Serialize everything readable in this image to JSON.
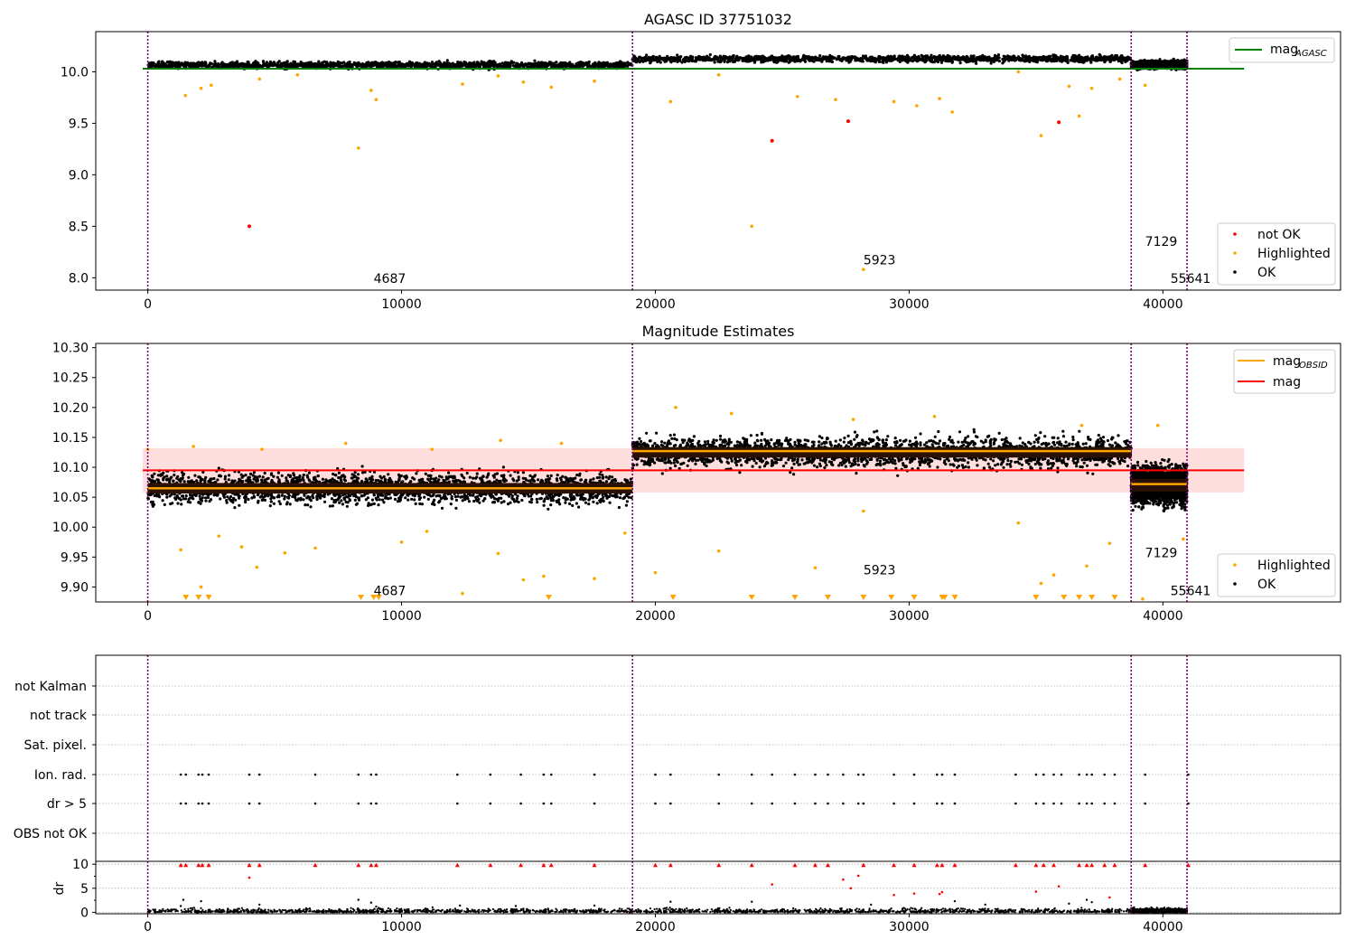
{
  "figure": {
    "title": "AGASC ID 37751032"
  },
  "colors": {
    "ok": "#000000",
    "highlighted": "#ffa500",
    "not_ok": "#ff0000",
    "mag_agasc": "#008000",
    "mag": "#ff0000",
    "mag_obsid": "#ffa500",
    "obs_line": "#800080",
    "band": "#ffdede",
    "grid": "#b0b0b0"
  },
  "chart_data": [
    {
      "id": "agasc",
      "type": "scatter",
      "title": "AGASC ID 37751032",
      "xlim": [
        -2050,
        47000
      ],
      "ylim": [
        7.88,
        10.39
      ],
      "xticks": [
        0,
        10000,
        20000,
        30000,
        40000
      ],
      "yticks": [
        8.0,
        8.5,
        9.0,
        9.5,
        10.0
      ],
      "ytick_labels": [
        "8.0",
        "8.5",
        "9.0",
        "9.5",
        "10.0"
      ],
      "obs_boundaries": [
        0,
        19100,
        38750,
        40950
      ],
      "obs_labels": [
        {
          "text": "4687",
          "x": 8900,
          "y": 7.95
        },
        {
          "text": "5923",
          "x": 28200,
          "y": 8.13
        },
        {
          "text": "7129",
          "x": 39300,
          "y": 8.31
        },
        {
          "text": "55641",
          "x": 40300,
          "y": 7.95
        }
      ],
      "mag_agasc": 10.03,
      "mag_agasc_xrange": [
        -200,
        43200
      ],
      "segments": [
        {
          "x0": 0,
          "x1": 19100,
          "center": 10.065,
          "spread": 0.03
        },
        {
          "x0": 19100,
          "x1": 38750,
          "center": 10.125,
          "spread": 0.03
        },
        {
          "x0": 38750,
          "x1": 40950,
          "center": 10.07,
          "spread": 0.035
        }
      ],
      "highlighted": [
        [
          1480,
          9.77
        ],
        [
          2100,
          9.84
        ],
        [
          2500,
          9.87
        ],
        [
          8300,
          9.26
        ],
        [
          8800,
          9.82
        ],
        [
          9000,
          9.73
        ],
        [
          12400,
          9.88
        ],
        [
          14800,
          9.9
        ],
        [
          15900,
          9.85
        ],
        [
          17600,
          9.91
        ],
        [
          20600,
          9.71
        ],
        [
          23800,
          8.5
        ],
        [
          25600,
          9.76
        ],
        [
          27100,
          9.73
        ],
        [
          28200,
          8.08
        ],
        [
          29400,
          9.71
        ],
        [
          30300,
          9.67
        ],
        [
          31200,
          9.74
        ],
        [
          31700,
          9.61
        ],
        [
          34300,
          10.0
        ],
        [
          35200,
          9.38
        ],
        [
          36300,
          9.86
        ],
        [
          36700,
          9.57
        ],
        [
          37200,
          9.84
        ],
        [
          38300,
          9.93
        ],
        [
          39300,
          9.87
        ],
        [
          22500,
          9.97
        ],
        [
          4400,
          9.93
        ],
        [
          13800,
          9.96
        ],
        [
          5900,
          9.97
        ]
      ],
      "not_ok": [
        [
          4000,
          8.5
        ],
        [
          24600,
          9.33
        ],
        [
          27600,
          9.52
        ],
        [
          35900,
          9.51
        ]
      ],
      "legend_line": [
        {
          "label": "mag",
          "sub": "AGASC"
        }
      ],
      "legend_markers": [
        {
          "label": "not OK"
        },
        {
          "label": "Highlighted"
        },
        {
          "label": "OK"
        }
      ]
    },
    {
      "id": "mag_est",
      "type": "scatter",
      "title": "Magnitude Estimates",
      "xlim": [
        -2050,
        47000
      ],
      "ylim": [
        9.875,
        10.307
      ],
      "xticks": [
        0,
        10000,
        20000,
        30000,
        40000
      ],
      "yticks": [
        9.9,
        9.95,
        10.0,
        10.05,
        10.1,
        10.15,
        10.2,
        10.25,
        10.3
      ],
      "ytick_labels": [
        "9.90",
        "9.95",
        "10.00",
        "10.05",
        "10.10",
        "10.15",
        "10.20",
        "10.25",
        "10.30"
      ],
      "obs_boundaries": [
        0,
        19100,
        38750,
        40950
      ],
      "obs_labels": [
        {
          "text": "4687",
          "x": 8900,
          "y": 9.886
        },
        {
          "text": "5923",
          "x": 28200,
          "y": 9.921
        },
        {
          "text": "7129",
          "x": 39300,
          "y": 9.95
        },
        {
          "text": "55641",
          "x": 40300,
          "y": 9.886
        }
      ],
      "mag": 10.095,
      "mag_band": [
        10.058,
        10.132
      ],
      "mag_band_xrange": [
        -200,
        43200
      ],
      "mag_obsid": [
        {
          "x0": 0,
          "x1": 19100,
          "value": 10.065
        },
        {
          "x0": 19100,
          "x1": 38750,
          "value": 10.127
        },
        {
          "x0": 38750,
          "x1": 40950,
          "value": 10.072
        }
      ],
      "segments": [
        {
          "x0": 0,
          "x1": 19100,
          "center": 10.065,
          "spread": 0.025
        },
        {
          "x0": 19100,
          "x1": 38750,
          "center": 10.125,
          "spread": 0.025
        },
        {
          "x0": 38750,
          "x1": 40950,
          "center": 10.07,
          "spread": 0.03
        }
      ],
      "highlighted": [
        [
          0,
          10.13
        ],
        [
          1300,
          9.962
        ],
        [
          2100,
          9.9
        ],
        [
          2800,
          9.985
        ],
        [
          3700,
          9.967
        ],
        [
          4300,
          9.933
        ],
        [
          5400,
          9.957
        ],
        [
          6600,
          9.965
        ],
        [
          10000,
          9.975
        ],
        [
          11000,
          9.993
        ],
        [
          12400,
          9.889
        ],
        [
          13800,
          9.956
        ],
        [
          14800,
          9.912
        ],
        [
          15600,
          9.918
        ],
        [
          17600,
          9.914
        ],
        [
          18800,
          9.99
        ],
        [
          20000,
          9.924
        ],
        [
          22500,
          9.96
        ],
        [
          26300,
          9.932
        ],
        [
          28200,
          10.027
        ],
        [
          34300,
          10.007
        ],
        [
          35200,
          9.906
        ],
        [
          35700,
          9.92
        ],
        [
          37000,
          9.935
        ],
        [
          37900,
          9.973
        ],
        [
          39200,
          9.88
        ],
        [
          40800,
          9.98
        ],
        [
          20800,
          10.2
        ],
        [
          23000,
          10.19
        ],
        [
          27800,
          10.18
        ],
        [
          31000,
          10.185
        ],
        [
          36800,
          10.17
        ],
        [
          39800,
          10.17
        ],
        [
          1800,
          10.135
        ],
        [
          4500,
          10.13
        ],
        [
          7800,
          10.14
        ],
        [
          11200,
          10.13
        ],
        [
          13900,
          10.145
        ],
        [
          16300,
          10.14
        ]
      ],
      "below_range": [
        1500,
        2000,
        2400,
        8400,
        8900,
        9100,
        15800,
        20700,
        23800,
        25500,
        26800,
        28200,
        29300,
        30200,
        31300,
        31400,
        31800,
        35000,
        36100,
        36700,
        37200,
        38100
      ],
      "legend_line": [
        {
          "label": "mag",
          "sub": "OBSID"
        },
        {
          "label": "mag",
          "sub": ""
        }
      ],
      "legend_markers": [
        {
          "label": "Highlighted"
        },
        {
          "label": "OK"
        }
      ]
    },
    {
      "id": "flags",
      "type": "scatter",
      "xlim": [
        -2050,
        47000
      ],
      "categories": [
        "not Kalman",
        "not track",
        "Sat. pixel.",
        "Ion. rad.",
        "dr > 5",
        "OBS not OK"
      ],
      "obs_boundaries": [
        0,
        19100,
        38750,
        40950
      ],
      "flag_points": {
        "Ion. rad.": [
          1300,
          1500,
          2000,
          2150,
          2400,
          4000,
          4400,
          6600,
          8300,
          8800,
          9000,
          12200,
          13500,
          14700,
          15600,
          15900,
          17600,
          20000,
          20600,
          22500,
          23800,
          24600,
          25500,
          26300,
          26800,
          27400,
          28000,
          28200,
          29400,
          30200,
          31100,
          31300,
          31800,
          34200,
          35000,
          35300,
          35700,
          36000,
          36700,
          37000,
          37200,
          37700,
          38100,
          39300,
          41000
        ],
        "dr > 5": [
          1300,
          1500,
          2000,
          2150,
          2400,
          4000,
          4400,
          6600,
          8300,
          8800,
          9000,
          12200,
          13500,
          14700,
          15600,
          15900,
          17600,
          20000,
          20600,
          22500,
          23800,
          24600,
          25500,
          26300,
          26800,
          27400,
          28000,
          28200,
          29400,
          30200,
          31100,
          31300,
          31800,
          34200,
          35000,
          35300,
          35700,
          36000,
          36700,
          37000,
          37200,
          37700,
          38100,
          39300,
          41000
        ]
      }
    },
    {
      "id": "dr",
      "type": "scatter",
      "xlim": [
        -2050,
        47000
      ],
      "ylim": [
        -0.3,
        10.6
      ],
      "yticks": [
        0,
        5,
        10
      ],
      "ytick_labels": [
        "0",
        "5",
        "10"
      ],
      "xticks": [
        0,
        10000,
        20000,
        30000,
        40000
      ],
      "ylabel": "dr",
      "obs_boundaries": [
        0,
        19100,
        38750,
        40950
      ],
      "dr_high": [
        [
          1300,
          9.8
        ],
        [
          1500,
          9.8
        ],
        [
          2000,
          9.8
        ],
        [
          2150,
          9.8
        ],
        [
          2400,
          9.8
        ],
        [
          4000,
          9.8
        ],
        [
          4400,
          9.8
        ],
        [
          6600,
          9.8
        ],
        [
          8300,
          9.8
        ],
        [
          8800,
          9.8
        ],
        [
          9000,
          9.8
        ],
        [
          12200,
          9.8
        ],
        [
          13500,
          9.8
        ],
        [
          14700,
          9.8
        ],
        [
          15600,
          9.8
        ],
        [
          15900,
          9.8
        ],
        [
          17600,
          9.8
        ],
        [
          20000,
          9.8
        ],
        [
          20600,
          9.8
        ],
        [
          22500,
          9.8
        ],
        [
          23800,
          9.8
        ],
        [
          25500,
          9.8
        ],
        [
          26300,
          9.8
        ],
        [
          26800,
          9.8
        ],
        [
          28200,
          9.8
        ],
        [
          29400,
          9.8
        ],
        [
          30200,
          9.8
        ],
        [
          31100,
          9.8
        ],
        [
          31300,
          9.8
        ],
        [
          31800,
          9.8
        ],
        [
          34200,
          9.8
        ],
        [
          35000,
          9.8
        ],
        [
          35300,
          9.8
        ],
        [
          35700,
          9.8
        ],
        [
          36700,
          9.8
        ],
        [
          37000,
          9.8
        ],
        [
          37200,
          9.8
        ],
        [
          37700,
          9.8
        ],
        [
          38100,
          9.8
        ],
        [
          39300,
          9.8
        ],
        [
          41000,
          9.8
        ]
      ],
      "dr_mid": [
        [
          4000,
          7.2
        ],
        [
          24600,
          5.8
        ],
        [
          27700,
          5.0
        ],
        [
          28000,
          7.6
        ],
        [
          29400,
          3.6
        ],
        [
          30200,
          3.9
        ],
        [
          31200,
          3.8
        ],
        [
          31300,
          4.2
        ],
        [
          35000,
          4.3
        ],
        [
          35900,
          5.4
        ],
        [
          37900,
          3.1
        ],
        [
          27400,
          6.8
        ]
      ],
      "dr_ok_scatter": [
        [
          1400,
          2.6
        ],
        [
          2100,
          2.3
        ],
        [
          1300,
          1.3
        ],
        [
          8300,
          2.6
        ],
        [
          8800,
          2.0
        ],
        [
          4400,
          1.6
        ],
        [
          20600,
          2.2
        ],
        [
          23800,
          2.2
        ],
        [
          31800,
          2.3
        ],
        [
          37000,
          2.6
        ],
        [
          37200,
          2.1
        ],
        [
          33000,
          1.6
        ],
        [
          14500,
          1.3
        ],
        [
          12300,
          1.4
        ],
        [
          28500,
          1.6
        ],
        [
          36300,
          1.8
        ],
        [
          17600,
          1.4
        ],
        [
          9000,
          1.2
        ]
      ]
    }
  ]
}
